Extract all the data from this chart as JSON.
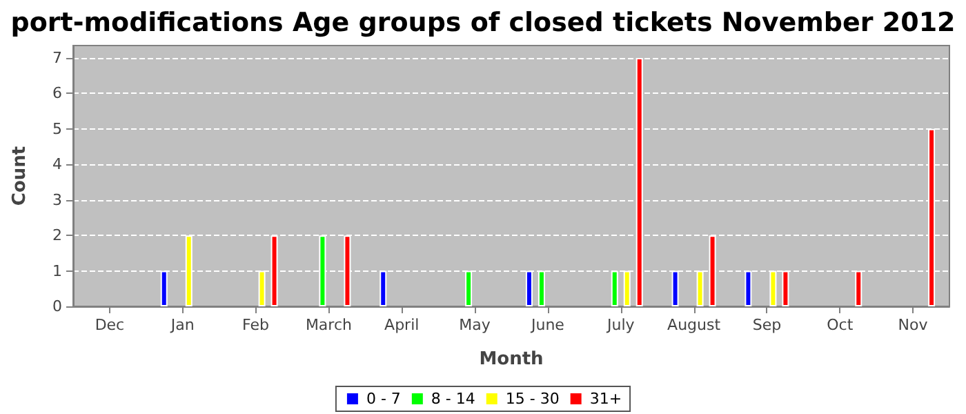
{
  "chart_data": {
    "type": "bar",
    "title": "port-modifications Age groups of closed tickets November 2012",
    "xlabel": "Month",
    "ylabel": "Count",
    "categories": [
      "Dec",
      "Jan",
      "Feb",
      "March",
      "April",
      "May",
      "June",
      "July",
      "August",
      "Sep",
      "Oct",
      "Nov"
    ],
    "series": [
      {
        "name": "0 - 7",
        "color": "#0000ff",
        "values": [
          null,
          1,
          null,
          null,
          1,
          null,
          1,
          null,
          1,
          1,
          null,
          null
        ]
      },
      {
        "name": "8 - 14",
        "color": "#00ff00",
        "values": [
          null,
          null,
          null,
          2,
          null,
          1,
          1,
          1,
          null,
          null,
          null,
          null
        ]
      },
      {
        "name": "15 - 30",
        "color": "#ffff00",
        "values": [
          null,
          2,
          1,
          null,
          null,
          null,
          null,
          1,
          1,
          1,
          null,
          null
        ]
      },
      {
        "name": "31+",
        "color": "#ff0000",
        "values": [
          null,
          null,
          2,
          2,
          null,
          null,
          null,
          7,
          2,
          1,
          1,
          5
        ]
      }
    ],
    "ylim": [
      0,
      7.35
    ],
    "yticks": [
      0,
      1,
      2,
      3,
      4,
      5,
      6,
      7
    ],
    "grid": "y",
    "legend": "bottom"
  }
}
